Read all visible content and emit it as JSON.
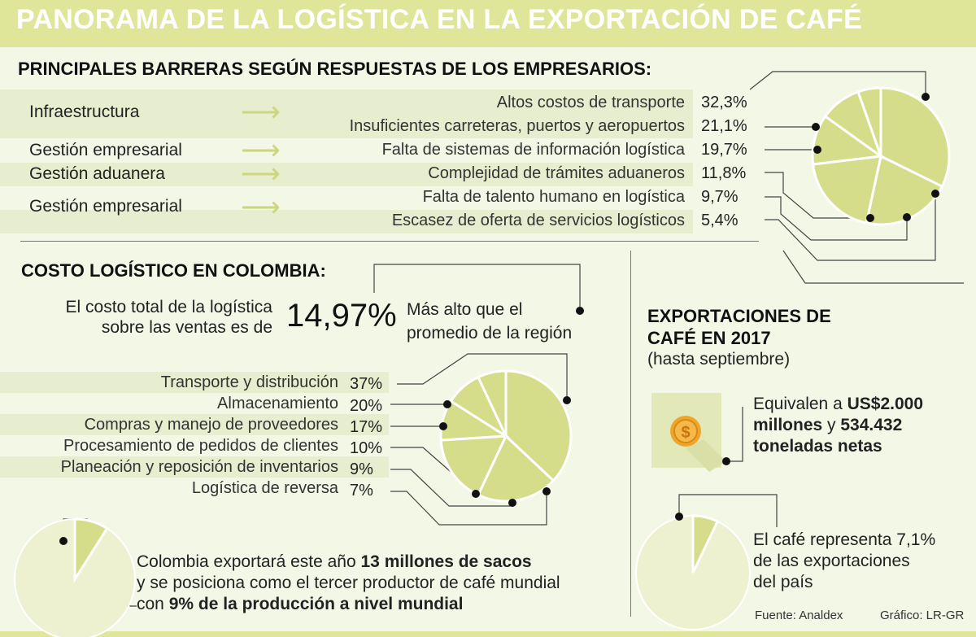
{
  "header": {
    "title": "PANORAMA DE LA LOGÍSTICA EN LA EXPORTACIÓN DE CAFÉ"
  },
  "barriers": {
    "heading": "PRINCIPALES BARRERAS SEGÚN RESPUESTAS DE LOS EMPRESARIOS:",
    "categories": [
      "Infraestructura",
      "Gestión empresarial",
      "Gestión aduanera",
      "Gestión empresarial"
    ]
  },
  "cost": {
    "heading": "COSTO LOGÍSTICO EN COLOMBIA:",
    "total_text_line1": "El costo total de la logística",
    "total_text_line2": "sobre las ventas es de",
    "total_value": "14,97%",
    "region_line1": "Más alto que el",
    "region_line2": "promedio de la región"
  },
  "exports": {
    "heading_line1": "EXPORTACIONES DE",
    "heading_line2": "CAFÉ EN 2017",
    "subheading": "(hasta septiembre)",
    "equiv_prefix": "Equivalen a ",
    "equiv_amount": "US$2.000",
    "equiv_millions": "millones",
    "equiv_and": " y ",
    "equiv_tons": "534.432",
    "equiv_tons_label": "toneladas netas",
    "share_prefix": "El café representa ",
    "share_value": "7,1%",
    "share_line2": "de las exportaciones",
    "share_line3": "del país",
    "coin_icon": "dollar-coin-icon"
  },
  "production": {
    "line1_prefix": "Colombia exportará este año ",
    "line1_bold": "13 millones de sacos",
    "line2": "y se posiciona como el tercer productor de café mundial",
    "line3_prefix": "con ",
    "line3_bold": "9% de la producción a nivel mundial"
  },
  "footer": {
    "source": "Fuente: Analdex",
    "credit": "Gráfico: LR-GR"
  },
  "colors": {
    "accent": "#dfe69a",
    "pie": "#d5dd8a",
    "pie_light": "#eef1cf",
    "background": "#f3f7e6",
    "stripe": "#e7edcf"
  },
  "chart_data": [
    {
      "type": "pie",
      "labels": [
        "Altos costos de transporte",
        "Insuficientes carreteras, puertos y aeropuertos",
        "Falta de sistemas de información logística",
        "Complejidad de trámites aduaneros",
        "Falta de talento humano en logística",
        "Escasez de oferta de servicios logísticos"
      ],
      "values": [
        32.3,
        21.1,
        19.7,
        11.8,
        9.7,
        5.4
      ],
      "value_labels": [
        "32,3%",
        "21,1%",
        "19,7%",
        "11,8%",
        "9,7%",
        "5,4%"
      ]
    },
    {
      "type": "pie",
      "labels": [
        "Transporte y distribución",
        "Almacenamiento",
        "Compras y manejo de proveedores",
        "Procesamiento de pedidos de clientes",
        "Planeación y reposición de inventarios",
        "Logística de reversa"
      ],
      "values": [
        37,
        20,
        17,
        10,
        9,
        7
      ],
      "value_labels": [
        "37%",
        "20%",
        "17%",
        "10%",
        "9%",
        "7%"
      ]
    },
    {
      "type": "pie",
      "labels": [
        "Colombia"
      ],
      "values": [
        9
      ]
    },
    {
      "type": "pie",
      "labels": [
        "Café"
      ],
      "values": [
        7.1
      ]
    }
  ]
}
